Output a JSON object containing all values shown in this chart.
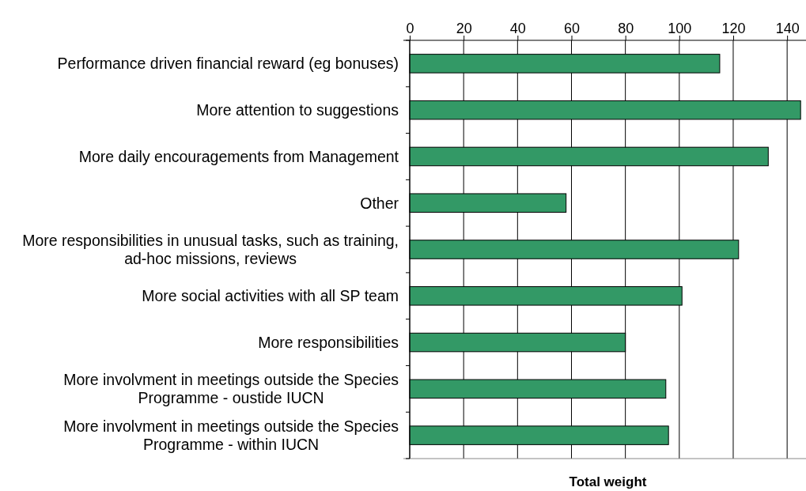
{
  "chart_data": {
    "type": "bar",
    "orientation": "horizontal",
    "xlabel": "Total weight",
    "categories": [
      "Performance driven financial reward (eg bonuses)",
      "More attention to suggestions",
      "More daily encouragements from Management",
      "Other",
      "More responsibilities in unusual tasks, such as training, ad-hoc missions, reviews",
      "More social activities with all SP team",
      "More responsibilities",
      "More involvment in meetings outside the Species Programme - oustide IUCN",
      "More involvment in meetings outside the Species Programme - within IUCN"
    ],
    "values": [
      115,
      145,
      133,
      58,
      122,
      101,
      80,
      95,
      96
    ],
    "color": "#339966",
    "xlim": [
      0,
      147
    ],
    "xticks": [
      0,
      20,
      40,
      60,
      80,
      100,
      120,
      140
    ],
    "grid": "x"
  }
}
